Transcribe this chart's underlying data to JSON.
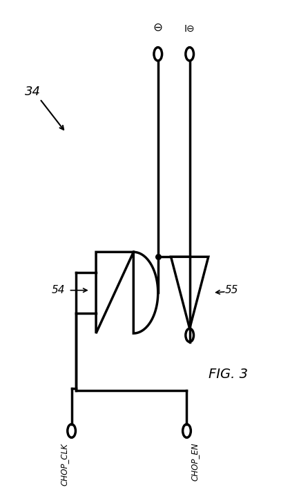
{
  "fig_width": 4.2,
  "fig_height": 7.16,
  "dpi": 100,
  "bg_color": "#ffffff",
  "line_color": "#000000",
  "line_width": 2.5,
  "label_34": "34",
  "label_54": "54",
  "label_55": "55",
  "label_fig": "FIG. 3",
  "label_chop_clk": "CHOP_CLK",
  "label_chop_en": "CHOP_EN",
  "cr": 0.014
}
